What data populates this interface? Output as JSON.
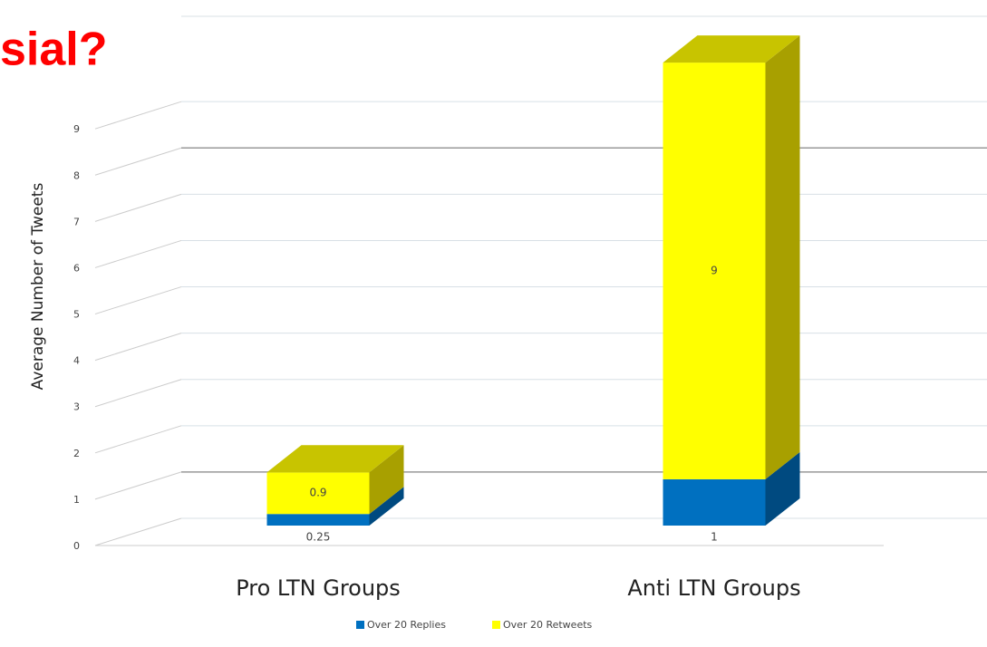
{
  "heading": "sial?",
  "chart_data": {
    "type": "bar",
    "y_label": "Average  Number  of Tweets",
    "categories": [
      "Pro LTN Groups",
      "Anti LTN Groups"
    ],
    "series": [
      {
        "name": "Over 20 Replies",
        "color": "#0070c0",
        "values": [
          0.25,
          1
        ]
      },
      {
        "name": "Over 20 Retweets",
        "color": "#ffff00",
        "values": [
          0.9,
          9
        ]
      }
    ],
    "ylim": [
      0,
      11
    ],
    "yticks": [
      0,
      1,
      2,
      3,
      4,
      5,
      6,
      7,
      8,
      9
    ],
    "grid": true,
    "legend": "bottom"
  }
}
